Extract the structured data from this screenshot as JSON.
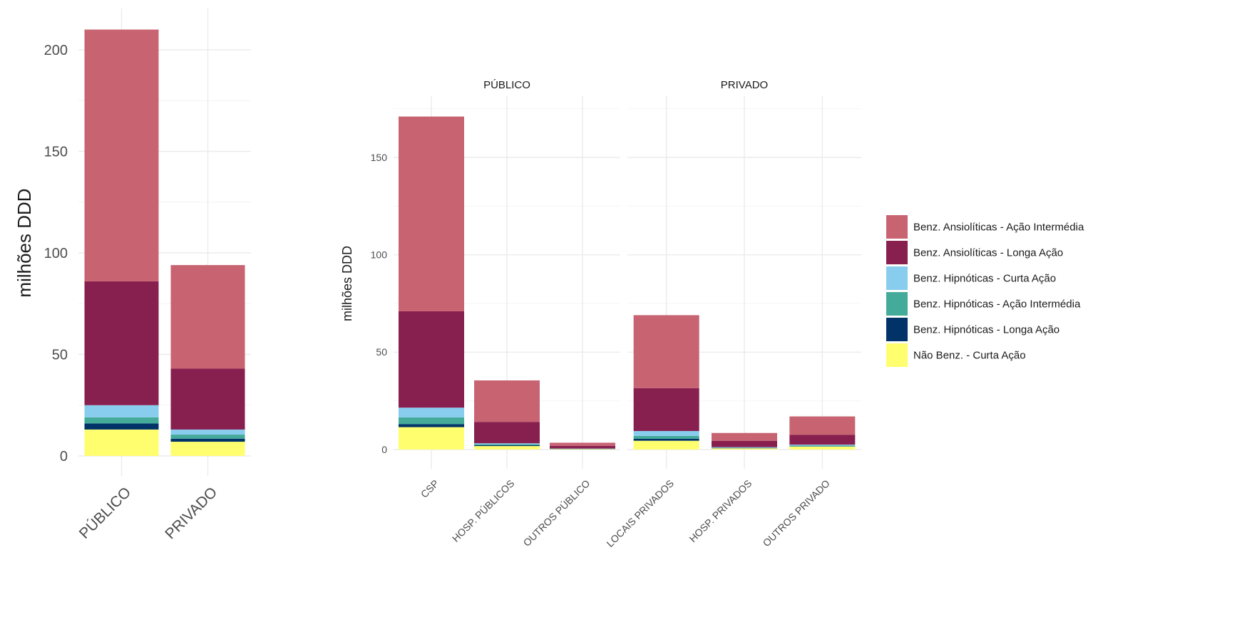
{
  "colors": {
    "Benz. Ansiolíticas - Ação Intermédia": "#c86472",
    "Benz. Ansiolíticas - Longa Ação": "#88204f",
    "Benz. Hipnóticas - Curta Ação": "#88ccee",
    "Benz. Hipnóticas - Ação Intermédia": "#44aa99",
    "Benz. Hipnóticas - Longa Ação": "#013368",
    "Não Benz. - Curta Ação": "#fefe6f"
  },
  "legend": {
    "items": [
      "Benz. Ansiolíticas - Ação Intermédia",
      "Benz. Ansiolíticas - Longa Ação",
      "Benz. Hipnóticas - Curta Ação",
      "Benz. Hipnóticas - Ação Intermédia",
      "Benz. Hipnóticas - Longa Ação",
      "Não Benz. - Curta Ação"
    ]
  },
  "chart_data": [
    {
      "type": "bar",
      "stacked": true,
      "ylabel": "milhões DDD",
      "ylim": [
        0,
        210
      ],
      "y_ticks": [
        0,
        50,
        100,
        150,
        200
      ],
      "categories": [
        "PÚBLICO",
        "PRIVADO"
      ],
      "series": [
        {
          "name": "Não Benz. - Curta Ação",
          "values": [
            13,
            7
          ]
        },
        {
          "name": "Benz. Hipnóticas - Longa Ação",
          "values": [
            3,
            1.5
          ]
        },
        {
          "name": "Benz. Hipnóticas - Ação Intermédia",
          "values": [
            3,
            2
          ]
        },
        {
          "name": "Benz. Hipnóticas - Curta Ação",
          "values": [
            6,
            2.5
          ]
        },
        {
          "name": "Benz. Ansiolíticas - Longa Ação",
          "values": [
            61,
            30
          ]
        },
        {
          "name": "Benz. Ansiolíticas - Ação Intermédia",
          "values": [
            124,
            51
          ]
        }
      ]
    },
    {
      "type": "bar",
      "stacked": true,
      "ylabel": "milhões DDD",
      "ylim": [
        0,
        172
      ],
      "y_ticks": [
        0,
        50,
        100,
        150
      ],
      "facets": [
        {
          "label": "PÚBLICO",
          "categories": [
            "CSP",
            "HOSP. PÚBLICOS",
            "OUTROS PÚBLICO"
          ],
          "series": [
            {
              "name": "Não Benz. - Curta Ação",
              "values": [
                11.5,
                1.8,
                0.2
              ]
            },
            {
              "name": "Benz. Hipnóticas - Longa Ação",
              "values": [
                1.5,
                0.4,
                0.1
              ]
            },
            {
              "name": "Benz. Hipnóticas - Ação Intermédia",
              "values": [
                3.5,
                0.5,
                0.1
              ]
            },
            {
              "name": "Benz. Hipnóticas - Curta Ação",
              "values": [
                5,
                0.5,
                0.1
              ]
            },
            {
              "name": "Benz. Ansiolíticas - Longa Ação",
              "values": [
                49.5,
                11,
                1.4
              ]
            },
            {
              "name": "Benz. Ansiolíticas - Ação Intermédia",
              "values": [
                100,
                21.3,
                1.6
              ]
            }
          ]
        },
        {
          "label": "PRIVADO",
          "categories": [
            "LOCAIS PRIVADOS",
            "HOSP. PRIVADOS",
            "OUTROS PRIVADO"
          ],
          "series": [
            {
              "name": "Não Benz. - Curta Ação",
              "values": [
                4.5,
                0.6,
                1.5
              ]
            },
            {
              "name": "Benz. Hipnóticas - Longa Ação",
              "values": [
                1,
                0.1,
                0.1
              ]
            },
            {
              "name": "Benz. Hipnóticas - Ação Intermédia",
              "values": [
                1.5,
                0.2,
                0.4
              ]
            },
            {
              "name": "Benz. Hipnóticas - Curta Ação",
              "values": [
                2.5,
                0.3,
                0.5
              ]
            },
            {
              "name": "Benz. Ansiolíticas - Longa Ação",
              "values": [
                22,
                3.3,
                5
              ]
            },
            {
              "name": "Benz. Ansiolíticas - Ação Intermédia",
              "values": [
                37.5,
                4,
                9.5
              ]
            }
          ]
        }
      ]
    }
  ]
}
